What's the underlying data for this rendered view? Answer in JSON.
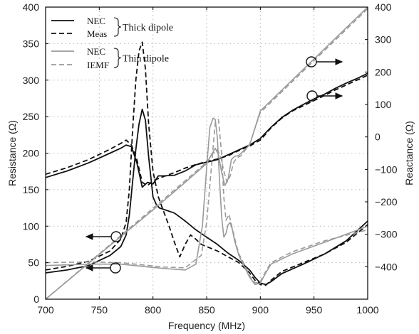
{
  "chart_data": {
    "type": "line",
    "xlabel": "Frequency (MHz)",
    "ylabel_left": "Resistance (Ω)",
    "ylabel_right": "Reactance (Ω)",
    "xlim": [
      700,
      1000
    ],
    "ylim_left": [
      0,
      400
    ],
    "ylim_right": [
      -500,
      400
    ],
    "x_ticks": [
      700,
      750,
      800,
      850,
      900,
      950,
      1000
    ],
    "y_ticks_left": [
      0,
      50,
      100,
      150,
      200,
      250,
      300,
      350,
      400
    ],
    "y_ticks_right": [
      -400,
      -300,
      -200,
      -100,
      0,
      100,
      200,
      300,
      400
    ],
    "grid": true,
    "legend_position": "top-left",
    "legend": {
      "groups": [
        {
          "label": "Thick dipole",
          "entries": [
            "NEC",
            "Meas"
          ]
        },
        {
          "label": "Thin dipole",
          "entries": [
            "NEC",
            "IEMF"
          ]
        }
      ]
    },
    "colors": {
      "thick": "#111111",
      "thin": "#9a9a9a",
      "grid": "#b5b5b5"
    },
    "series": [
      {
        "group": "Thick dipole",
        "name": "NEC",
        "quantity": "Resistance",
        "axis": "left",
        "style": "solid",
        "color": "#111111",
        "x": [
          700,
          720,
          740,
          760,
          770,
          775,
          778,
          781,
          784,
          787,
          790,
          793,
          796,
          800,
          803,
          806,
          810,
          820,
          830,
          840,
          850,
          860,
          870,
          880,
          890,
          895,
          900,
          905,
          910,
          920,
          940,
          960,
          980,
          1000
        ],
        "y": [
          36,
          40,
          46,
          60,
          72,
          88,
          115,
          160,
          205,
          240,
          260,
          245,
          195,
          140,
          130,
          125,
          123,
          118,
          107,
          95,
          85,
          75,
          63,
          53,
          40,
          30,
          22,
          20,
          24,
          35,
          48,
          62,
          80,
          107
        ]
      },
      {
        "group": "Thick dipole",
        "name": "Meas",
        "quantity": "Resistance",
        "axis": "left",
        "style": "dashed",
        "color": "#111111",
        "x": [
          700,
          720,
          740,
          760,
          770,
          775,
          778,
          781,
          784,
          787,
          790,
          793,
          796,
          800,
          805,
          810,
          815,
          820,
          825,
          830,
          835,
          840,
          845,
          850,
          860,
          870,
          880,
          890,
          895,
          900,
          905,
          910,
          920,
          940,
          960,
          980,
          1000
        ],
        "y": [
          40,
          45,
          52,
          66,
          82,
          105,
          150,
          230,
          300,
          340,
          352,
          315,
          240,
          175,
          140,
          120,
          100,
          78,
          58,
          75,
          88,
          82,
          75,
          72,
          66,
          58,
          50,
          36,
          26,
          20,
          19,
          26,
          38,
          50,
          62,
          78,
          102
        ]
      },
      {
        "group": "Thin dipole",
        "name": "NEC",
        "quantity": "Resistance",
        "axis": "left",
        "style": "solid",
        "color": "#9a9a9a",
        "x": [
          700,
          740,
          770,
          790,
          810,
          830,
          840,
          846,
          850,
          853,
          856,
          858,
          860,
          862,
          864,
          866,
          868,
          870,
          872,
          874,
          876,
          880,
          885,
          890,
          895,
          900,
          905,
          910,
          930,
          960,
          1000
        ],
        "y": [
          46,
          48,
          48,
          45,
          42,
          40,
          48,
          100,
          180,
          235,
          248,
          246,
          220,
          162,
          112,
          85,
          90,
          102,
          105,
          95,
          80,
          60,
          45,
          30,
          20,
          22,
          36,
          48,
          62,
          78,
          100
        ]
      },
      {
        "group": "Thin dipole",
        "name": "IEMF",
        "quantity": "Resistance",
        "axis": "left",
        "style": "dashed",
        "color": "#9a9a9a",
        "x": [
          700,
          740,
          770,
          790,
          810,
          830,
          845,
          850,
          855,
          858,
          861,
          864,
          866,
          868,
          871,
          874,
          877,
          880,
          885,
          890,
          895,
          900,
          905,
          910,
          930,
          960,
          1000
        ],
        "y": [
          50,
          51,
          50,
          47,
          44,
          43,
          60,
          105,
          190,
          242,
          246,
          198,
          140,
          108,
          116,
          96,
          78,
          62,
          48,
          32,
          22,
          24,
          38,
          50,
          65,
          80,
          95
        ]
      },
      {
        "group": "Thick dipole",
        "name": "NEC",
        "quantity": "Reactance",
        "axis": "right",
        "style": "solid",
        "color": "#111111",
        "x": [
          700,
          720,
          740,
          760,
          770,
          775,
          780,
          785,
          790,
          795,
          800,
          805,
          810,
          820,
          830,
          840,
          850,
          860,
          870,
          880,
          890,
          900,
          910,
          920,
          930,
          940,
          950,
          960,
          970,
          980,
          990,
          1000
        ],
        "y": [
          -125,
          -105,
          -80,
          -50,
          -35,
          -25,
          -30,
          -80,
          -155,
          -140,
          -145,
          -120,
          -120,
          -118,
          -105,
          -86,
          -78,
          -70,
          -55,
          -40,
          -25,
          -5,
          30,
          60,
          82,
          100,
          117,
          132,
          150,
          166,
          180,
          196
        ]
      },
      {
        "group": "Thick dipole",
        "name": "Meas",
        "quantity": "Reactance",
        "axis": "right",
        "style": "dashed",
        "color": "#111111",
        "x": [
          700,
          720,
          740,
          760,
          770,
          775,
          780,
          785,
          790,
          795,
          800,
          810,
          820,
          830,
          840,
          850,
          860,
          870,
          880,
          890,
          900,
          910,
          920,
          930,
          940,
          950,
          960,
          970,
          980,
          990,
          1000
        ],
        "y": [
          -115,
          -95,
          -70,
          -38,
          -20,
          -10,
          -25,
          -70,
          -140,
          -150,
          -135,
          -122,
          -110,
          -96,
          -85,
          -76,
          -68,
          -58,
          -42,
          -28,
          -10,
          28,
          58,
          80,
          96,
          112,
          128,
          145,
          160,
          175,
          190
        ]
      },
      {
        "group": "Thin dipole",
        "name": "NEC",
        "quantity": "Reactance",
        "axis": "right",
        "style": "solid",
        "color": "#9a9a9a",
        "x": [
          700,
          750,
          800,
          830,
          850,
          855,
          858,
          861,
          864,
          867,
          870,
          873,
          876,
          880,
          890,
          900,
          1000
        ],
        "y": [
          -500,
          -362,
          -225,
          -140,
          -82,
          -52,
          -35,
          -55,
          -110,
          -150,
          -130,
          -70,
          -60,
          -57,
          -25,
          80,
          400
        ]
      },
      {
        "group": "Thin dipole",
        "name": "IEMF",
        "quantity": "Reactance",
        "axis": "right",
        "style": "dashed",
        "color": "#9a9a9a",
        "x": [
          700,
          750,
          800,
          830,
          850,
          856,
          860,
          863,
          866,
          869,
          872,
          875,
          878,
          882,
          890,
          900,
          1000
        ],
        "y": [
          -500,
          -360,
          -220,
          -135,
          -78,
          -50,
          -40,
          -60,
          -105,
          -140,
          -120,
          -80,
          -65,
          -58,
          -22,
          75,
          395
        ]
      }
    ]
  }
}
